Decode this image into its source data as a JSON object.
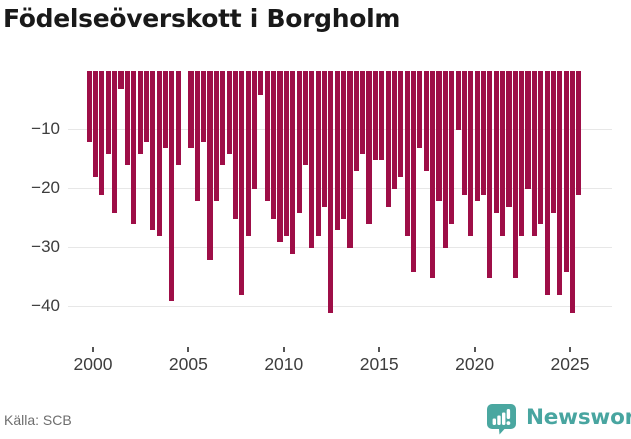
{
  "title": "Födelseöverskott i Borgholm",
  "source": "Källa: SCB",
  "branding": {
    "name": "Newsworthy",
    "logo_icon": "bar-chart-speech-bubble-icon",
    "logo_color": "#4AA7A0",
    "wordmark_color": "#48A5A0"
  },
  "colors": {
    "bar": "#9E0E47",
    "grid": "#E7E7E7",
    "axis_text": "#3D3D3D",
    "title_text": "#191919",
    "source_text": "#6E6E6E",
    "background": "#FFFFFF"
  },
  "chart_data": {
    "type": "bar",
    "title": "Födelseöverskott i Borgholm",
    "xlabel": "",
    "ylabel": "",
    "legend": "none",
    "grid": "horizontal",
    "ylim": [
      -46,
      0
    ],
    "y_ticks": [
      -10,
      -20,
      -30,
      -40
    ],
    "y_tick_labels": [
      "−10",
      "−20",
      "−30",
      "−40"
    ],
    "x_tick_years": [
      2000,
      2005,
      2010,
      2015,
      2020,
      2025
    ],
    "x_tick_labels": [
      "2000",
      "2005",
      "2010",
      "2015",
      "2020",
      "2025"
    ],
    "periods_per_year": 3,
    "first_period_decimal_year": 1999.667,
    "values": [
      -12,
      -18,
      -21,
      -14,
      -24,
      -3,
      -16,
      -26,
      -14,
      -12,
      -27,
      -28,
      -13,
      -39,
      -16,
      0,
      -13,
      -22,
      -12,
      -32,
      -22,
      -16,
      -14,
      -25,
      -38,
      -28,
      -20,
      -4,
      -22,
      -25,
      -29,
      -28,
      -31,
      -24,
      -16,
      -30,
      -28,
      -23,
      -41,
      -27,
      -25,
      -30,
      -17,
      -14,
      -26,
      -15,
      -15,
      -23,
      -20,
      -18,
      -28,
      -34,
      -13,
      -17,
      -35,
      -22,
      -30,
      -26,
      -10,
      -21,
      -28,
      -22,
      -21,
      -35,
      -24,
      -28,
      -23,
      -35,
      -28,
      -20,
      -28,
      -26,
      -38,
      -24,
      -38,
      -34,
      -41,
      -21
    ]
  }
}
